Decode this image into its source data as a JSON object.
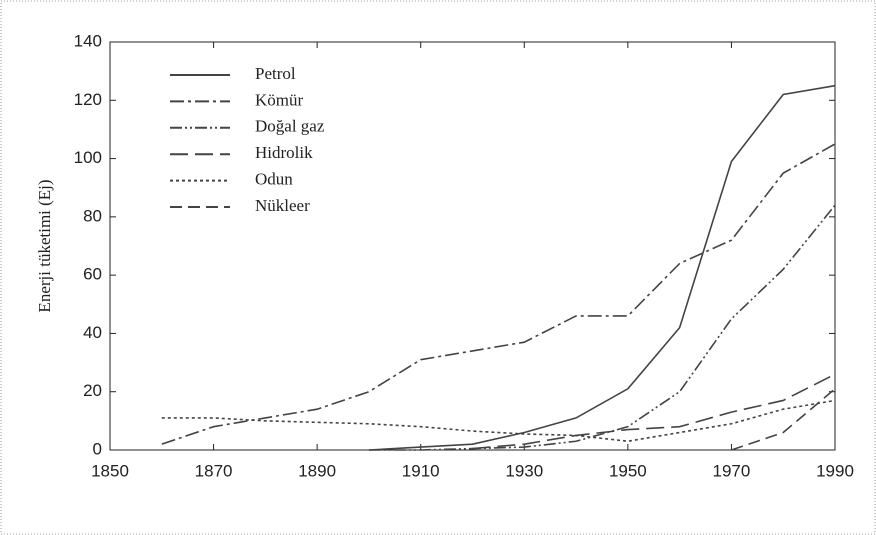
{
  "chart_data": {
    "type": "line",
    "ylabel": "Enerji tüketimi (Ej)",
    "x": [
      1860,
      1870,
      1880,
      1890,
      1900,
      1910,
      1920,
      1930,
      1940,
      1950,
      1960,
      1970,
      1980,
      1990
    ],
    "series": [
      {
        "name": "Petrol",
        "color": "#444444",
        "values": [
          null,
          null,
          null,
          null,
          0,
          1,
          2,
          6,
          11,
          21,
          42,
          99,
          122,
          125
        ]
      },
      {
        "name": "Kömür",
        "color": "#444444",
        "values": [
          2,
          8,
          11,
          14,
          20,
          31,
          34,
          37,
          46,
          46,
          64,
          72,
          95,
          105
        ]
      },
      {
        "name": "Doğal gaz",
        "color": "#444444",
        "values": [
          null,
          null,
          null,
          null,
          0,
          0,
          0.5,
          1,
          3,
          8,
          20,
          45,
          62,
          84
        ]
      },
      {
        "name": "Hidrolik",
        "color": "#444444",
        "values": [
          null,
          null,
          null,
          null,
          null,
          null,
          0.5,
          2,
          5,
          7,
          8,
          13,
          17,
          26
        ]
      },
      {
        "name": "Odun",
        "color": "#444444",
        "values": [
          11,
          11,
          10,
          9.5,
          9,
          8,
          6.5,
          5.5,
          5,
          3,
          6,
          9,
          14,
          17
        ]
      },
      {
        "name": "Nükleer",
        "color": "#444444",
        "values": [
          null,
          null,
          null,
          null,
          null,
          null,
          null,
          null,
          null,
          null,
          null,
          0,
          6,
          21
        ]
      }
    ],
    "xlim": [
      1850,
      1990
    ],
    "xticks": [
      1850,
      1870,
      1890,
      1910,
      1930,
      1950,
      1970,
      1990
    ],
    "ylim": [
      0,
      140
    ],
    "yticks": [
      0,
      20,
      40,
      60,
      80,
      100,
      120,
      140
    ],
    "grid": false
  }
}
